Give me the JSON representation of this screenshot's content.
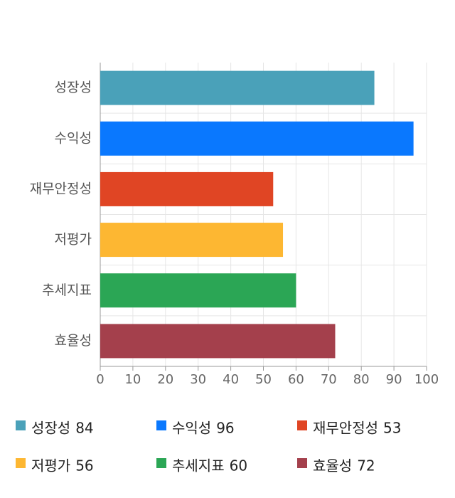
{
  "chart_data": {
    "type": "bar",
    "orientation": "horizontal",
    "categories": [
      "성장성",
      "수익성",
      "재무안정성",
      "저평가",
      "추세지표",
      "효율성"
    ],
    "values": [
      84,
      96,
      53,
      56,
      60,
      72
    ],
    "colors": [
      "#4aa1b9",
      "#0a78fe",
      "#e04524",
      "#fdb732",
      "#2ba655",
      "#a4404c"
    ],
    "xlim": [
      0,
      100
    ],
    "xticks": [
      0,
      10,
      20,
      30,
      40,
      50,
      60,
      70,
      80,
      90,
      100
    ],
    "grid": true
  }
}
